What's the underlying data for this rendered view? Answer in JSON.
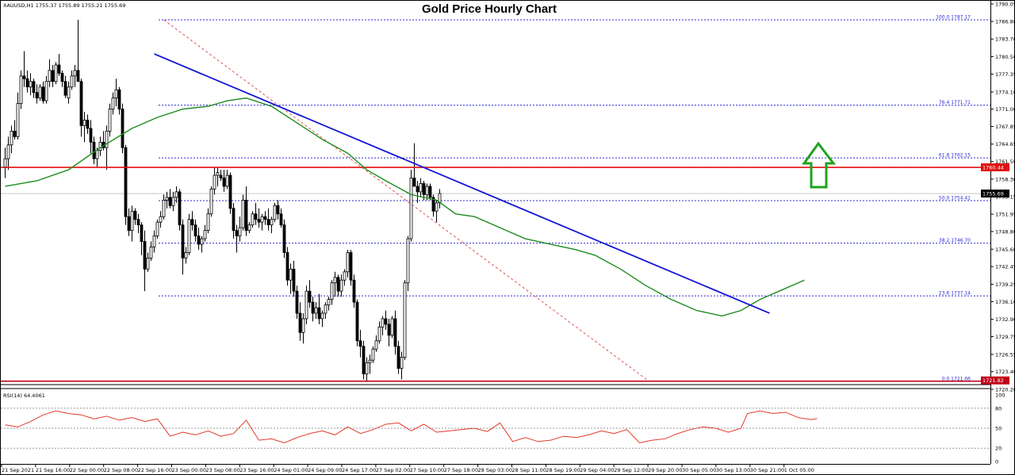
{
  "header": {
    "symbol_info": "XAUUSD,H1  1755.37 1755.89 1755.21 1755.69",
    "title": "Gold Price Hourly Chart"
  },
  "rsi_panel": {
    "label": "RSI(14) 64.4061",
    "levels": [
      "100",
      "80",
      "50",
      "20",
      "0"
    ]
  },
  "colors": {
    "bull_candle": "#ffffff",
    "bear_candle": "#000000",
    "trendline": "#1414d6",
    "moving_average": "#1e8c1e",
    "resistance": "#e01010",
    "support": "#c00018",
    "fib_lines": "#2b2bd6",
    "rsi_line": "#e03a2a",
    "arrow": "#1fa31f"
  },
  "chart_data": {
    "type": "candlestick",
    "title": "Gold Price Hourly Chart",
    "timeframe": "H1",
    "x_labels": [
      "21 Sep 2021",
      "21 Sep 16:00",
      "22 Sep 00:00",
      "22 Sep 08:00",
      "22 Sep 16:00",
      "23 Sep 00:00",
      "23 Sep 08:00",
      "23 Sep 16:00",
      "24 Sep 01:00",
      "24 Sep 09:00",
      "24 Sep 17:00",
      "27 Sep 02:00",
      "27 Sep 10:00",
      "27 Sep 18:00",
      "28 Sep 03:00",
      "28 Sep 11:00",
      "28 Sep 19:00",
      "29 Sep 04:00",
      "29 Sep 12:00",
      "29 Sep 20:00",
      "30 Sep 05:00",
      "30 Sep 13:00",
      "30 Sep 21:00",
      "1 Oct 05:00"
    ],
    "price_axis": [
      "1790.05",
      "1786.88",
      "1783.70",
      "1780.50",
      "1777.35",
      "1774.10",
      "1771.00",
      "1767.85",
      "1764.65",
      "1761.50",
      "1758.30",
      "1755.15",
      "1751.95",
      "1748.80",
      "1745.60",
      "1742.45",
      "1739.25",
      "1736.10",
      "1732.90",
      "1729.75",
      "1726.55",
      "1723.40",
      "1720.20"
    ],
    "ylim": [
      1720.2,
      1790.05
    ],
    "current_price": "1755.69",
    "resistance": {
      "value": 1760.44,
      "label": "1760.44"
    },
    "support": {
      "value": 1721.82,
      "label": "1721.82"
    },
    "fibonacci": [
      {
        "label": "100.0 1787.17",
        "value": 1787.17
      },
      {
        "label": "76.4 1771.71",
        "value": 1771.71
      },
      {
        "label": "61.8 1762.15",
        "value": 1762.15
      },
      {
        "label": "50.0 1754.41",
        "value": 1754.41
      },
      {
        "label": "38.2 1746.70",
        "value": 1746.7
      },
      {
        "label": "23.6 1737.14",
        "value": 1737.14
      },
      {
        "label": "0.0 1721.66",
        "value": 1721.66
      }
    ],
    "trendline": {
      "from": [
        47,
        1781.0
      ],
      "to": [
        241,
        1734.0
      ]
    },
    "fib_diagonal": {
      "from": [
        50,
        1787.17
      ],
      "to": [
        203,
        1721.66
      ]
    },
    "candles": [
      [
        1760.5,
        1764.0,
        1758.5,
        1762.0
      ],
      [
        1762.0,
        1766.0,
        1760.0,
        1764.5
      ],
      [
        1764.5,
        1768.0,
        1763.0,
        1767.0
      ],
      [
        1767.0,
        1769.0,
        1765.5,
        1766.0
      ],
      [
        1766.0,
        1774.0,
        1765.5,
        1772.0
      ],
      [
        1772.0,
        1778.0,
        1771.0,
        1777.0
      ],
      [
        1777.0,
        1781.5,
        1775.0,
        1776.5
      ],
      [
        1776.5,
        1778.0,
        1774.0,
        1775.0
      ],
      [
        1775.0,
        1777.5,
        1773.5,
        1776.0
      ],
      [
        1776.0,
        1776.5,
        1773.0,
        1774.0
      ],
      [
        1774.0,
        1775.5,
        1772.0,
        1773.0
      ],
      [
        1773.0,
        1775.5,
        1772.5,
        1775.0
      ],
      [
        1775.0,
        1776.0,
        1772.0,
        1772.5
      ],
      [
        1772.5,
        1777.0,
        1772.0,
        1776.0
      ],
      [
        1776.0,
        1780.0,
        1775.0,
        1778.0
      ],
      [
        1778.0,
        1779.0,
        1775.0,
        1776.0
      ],
      [
        1776.0,
        1779.5,
        1775.5,
        1779.0
      ],
      [
        1779.0,
        1781.0,
        1777.0,
        1777.5
      ],
      [
        1777.5,
        1778.0,
        1775.0,
        1776.0
      ],
      [
        1776.0,
        1777.0,
        1773.0,
        1773.5
      ],
      [
        1773.0,
        1776.0,
        1772.0,
        1775.0
      ],
      [
        1775.0,
        1778.0,
        1774.5,
        1777.0
      ],
      [
        1777.0,
        1779.0,
        1775.0,
        1778.0
      ],
      [
        1778.0,
        1787.2,
        1776.5,
        1776.0
      ],
      [
        1776.0,
        1776.5,
        1766.0,
        1768.0
      ],
      [
        1768.0,
        1770.5,
        1765.0,
        1769.0
      ],
      [
        1769.0,
        1770.0,
        1766.5,
        1767.5
      ],
      [
        1767.5,
        1769.0,
        1763.0,
        1765.0
      ],
      [
        1765.0,
        1766.0,
        1761.0,
        1762.0
      ],
      [
        1762.0,
        1764.0,
        1760.5,
        1763.5
      ],
      [
        1763.5,
        1766.0,
        1762.5,
        1765.0
      ],
      [
        1765.0,
        1767.0,
        1763.5,
        1764.0
      ],
      [
        1764.0,
        1768.0,
        1760.0,
        1767.0
      ],
      [
        1767.0,
        1772.0,
        1766.0,
        1771.0
      ],
      [
        1771.0,
        1774.0,
        1770.0,
        1773.0
      ],
      [
        1773.0,
        1776.5,
        1771.5,
        1774.5
      ],
      [
        1774.5,
        1775.0,
        1770.0,
        1771.0
      ],
      [
        1771.0,
        1772.0,
        1763.0,
        1764.0
      ],
      [
        1764.0,
        1764.5,
        1750.0,
        1751.5
      ],
      [
        1751.5,
        1753.0,
        1748.0,
        1749.0
      ],
      [
        1749.0,
        1753.5,
        1747.0,
        1752.5
      ],
      [
        1752.5,
        1753.0,
        1750.0,
        1751.0
      ],
      [
        1751.0,
        1752.0,
        1748.5,
        1750.0
      ],
      [
        1750.0,
        1750.5,
        1744.5,
        1747.0
      ],
      [
        1747.0,
        1749.0,
        1738.0,
        1742.0
      ],
      [
        1742.0,
        1745.0,
        1741.5,
        1744.0
      ],
      [
        1744.0,
        1747.0,
        1743.5,
        1746.0
      ],
      [
        1746.0,
        1749.0,
        1745.0,
        1748.0
      ],
      [
        1748.0,
        1751.0,
        1747.5,
        1750.5
      ],
      [
        1750.5,
        1752.5,
        1749.5,
        1751.5
      ],
      [
        1751.5,
        1755.5,
        1751.0,
        1754.5
      ],
      [
        1754.5,
        1756.0,
        1753.0,
        1755.0
      ],
      [
        1755.0,
        1756.5,
        1753.0,
        1753.5
      ],
      [
        1753.5,
        1756.0,
        1752.5,
        1755.0
      ],
      [
        1755.0,
        1757.0,
        1754.0,
        1756.0
      ],
      [
        1756.0,
        1756.5,
        1749.0,
        1750.0
      ],
      [
        1750.0,
        1751.0,
        1741.0,
        1744.0
      ],
      [
        1744.0,
        1746.0,
        1743.0,
        1745.0
      ],
      [
        1745.0,
        1752.0,
        1744.5,
        1751.0
      ],
      [
        1751.0,
        1752.5,
        1749.0,
        1750.0
      ],
      [
        1750.0,
        1751.0,
        1747.0,
        1748.0
      ],
      [
        1748.0,
        1749.5,
        1745.5,
        1746.5
      ],
      [
        1746.5,
        1748.0,
        1745.0,
        1747.5
      ],
      [
        1747.5,
        1750.0,
        1747.0,
        1749.0
      ],
      [
        1749.0,
        1753.0,
        1748.5,
        1752.0
      ],
      [
        1752.0,
        1757.0,
        1751.5,
        1756.5
      ],
      [
        1756.5,
        1760.5,
        1755.5,
        1759.0
      ],
      [
        1759.0,
        1760.5,
        1757.0,
        1759.5
      ],
      [
        1759.0,
        1760.0,
        1758.0,
        1758.5
      ],
      [
        1758.5,
        1760.0,
        1756.0,
        1757.0
      ],
      [
        1757.0,
        1760.0,
        1756.5,
        1759.0
      ],
      [
        1759.0,
        1759.5,
        1752.0,
        1753.0
      ],
      [
        1753.0,
        1754.0,
        1747.5,
        1749.0
      ],
      [
        1749.0,
        1750.0,
        1745.0,
        1748.0
      ],
      [
        1748.0,
        1751.5,
        1747.0,
        1749.5
      ],
      [
        1749.5,
        1755.5,
        1749.0,
        1754.5
      ],
      [
        1754.5,
        1757.0,
        1748.0,
        1749.0
      ],
      [
        1749.0,
        1750.5,
        1748.5,
        1750.0
      ],
      [
        1750.0,
        1752.5,
        1749.5,
        1752.0
      ],
      [
        1752.0,
        1754.0,
        1750.0,
        1751.0
      ],
      [
        1751.0,
        1753.0,
        1749.5,
        1750.5
      ],
      [
        1750.5,
        1752.0,
        1749.0,
        1751.5
      ],
      [
        1751.5,
        1752.5,
        1750.0,
        1751.0
      ],
      [
        1751.0,
        1753.0,
        1749.0,
        1750.0
      ],
      [
        1750.0,
        1751.5,
        1748.5,
        1751.0
      ],
      [
        1751.0,
        1754.0,
        1750.5,
        1753.5
      ],
      [
        1753.5,
        1754.5,
        1751.0,
        1752.0
      ],
      [
        1752.0,
        1753.0,
        1749.5,
        1750.0
      ],
      [
        1750.0,
        1751.0,
        1744.0,
        1745.0
      ],
      [
        1745.0,
        1746.0,
        1739.0,
        1740.0
      ],
      [
        1740.0,
        1743.0,
        1737.5,
        1742.0
      ],
      [
        1742.0,
        1743.5,
        1737.0,
        1738.0
      ],
      [
        1738.0,
        1739.0,
        1733.0,
        1734.0
      ],
      [
        1734.0,
        1736.0,
        1729.0,
        1730.5
      ],
      [
        1730.5,
        1734.0,
        1728.5,
        1733.0
      ],
      [
        1733.0,
        1739.0,
        1732.0,
        1738.0
      ],
      [
        1738.0,
        1740.0,
        1735.0,
        1736.0
      ],
      [
        1736.0,
        1737.0,
        1732.5,
        1734.0
      ],
      [
        1734.0,
        1736.0,
        1733.0,
        1735.0
      ],
      [
        1735.0,
        1737.5,
        1732.0,
        1733.0
      ],
      [
        1733.0,
        1734.5,
        1731.5,
        1734.0
      ],
      [
        1734.0,
        1736.0,
        1733.0,
        1735.5
      ],
      [
        1735.5,
        1737.0,
        1734.5,
        1736.5
      ],
      [
        1736.5,
        1740.0,
        1735.5,
        1739.5
      ],
      [
        1739.5,
        1741.5,
        1737.0,
        1740.5
      ],
      [
        1740.5,
        1741.0,
        1737.0,
        1738.0
      ],
      [
        1738.0,
        1741.0,
        1737.0,
        1740.0
      ],
      [
        1740.0,
        1742.0,
        1739.0,
        1741.5
      ],
      [
        1741.5,
        1745.5,
        1740.5,
        1745.0
      ],
      [
        1745.0,
        1745.5,
        1739.0,
        1740.0
      ],
      [
        1740.0,
        1741.0,
        1735.0,
        1736.0
      ],
      [
        1736.0,
        1736.5,
        1728.0,
        1729.0
      ],
      [
        1729.0,
        1731.0,
        1726.0,
        1728.0
      ],
      [
        1728.0,
        1729.0,
        1722.0,
        1723.0
      ],
      [
        1723.0,
        1726.0,
        1721.7,
        1725.0
      ],
      [
        1725.0,
        1726.5,
        1723.0,
        1725.5
      ],
      [
        1725.5,
        1728.0,
        1725.0,
        1727.5
      ],
      [
        1727.5,
        1730.0,
        1727.0,
        1729.0
      ],
      [
        1729.0,
        1732.5,
        1728.5,
        1731.5
      ],
      [
        1731.5,
        1733.5,
        1730.0,
        1733.0
      ],
      [
        1733.0,
        1734.5,
        1731.0,
        1732.0
      ],
      [
        1732.0,
        1733.0,
        1728.0,
        1730.0
      ],
      [
        1730.0,
        1733.5,
        1729.5,
        1733.0
      ],
      [
        1733.0,
        1734.5,
        1726.5,
        1728.0
      ],
      [
        1728.0,
        1729.0,
        1723.0,
        1724.0
      ],
      [
        1724.0,
        1727.0,
        1722.0,
        1726.0
      ],
      [
        1726.0,
        1740.0,
        1725.5,
        1739.5
      ],
      [
        1739.5,
        1748.0,
        1738.0,
        1747.5
      ],
      [
        1747.5,
        1760.0,
        1747.0,
        1758.5
      ],
      [
        1758.5,
        1764.8,
        1757.5,
        1757.0
      ],
      [
        1757.0,
        1758.0,
        1754.0,
        1756.0
      ],
      [
        1756.0,
        1758.5,
        1755.0,
        1757.5
      ],
      [
        1757.5,
        1758.0,
        1754.5,
        1755.5
      ],
      [
        1755.5,
        1757.5,
        1754.5,
        1757.0
      ],
      [
        1757.0,
        1757.5,
        1754.5,
        1755.0
      ],
      [
        1755.0,
        1755.5,
        1751.5,
        1752.5
      ],
      [
        1752.5,
        1754.5,
        1750.5,
        1754.0
      ],
      [
        1754.0,
        1756.5,
        1753.0,
        1755.69
      ]
    ],
    "moving_average": [
      [
        0,
        1757.0
      ],
      [
        10,
        1758.0
      ],
      [
        20,
        1760.0
      ],
      [
        30,
        1764.0
      ],
      [
        40,
        1767.5
      ],
      [
        48,
        1769.5
      ],
      [
        56,
        1771.0
      ],
      [
        64,
        1771.5
      ],
      [
        70,
        1772.5
      ],
      [
        76,
        1773.0
      ],
      [
        84,
        1771.5
      ],
      [
        92,
        1768.5
      ],
      [
        100,
        1765.5
      ],
      [
        108,
        1763.0
      ],
      [
        114,
        1760.0
      ],
      [
        120,
        1758.0
      ],
      [
        128,
        1755.5
      ],
      [
        136,
        1754.5
      ],
      [
        142,
        1752.0
      ],
      [
        148,
        1751.5
      ],
      [
        156,
        1749.5
      ],
      [
        164,
        1747.5
      ],
      [
        172,
        1746.5
      ],
      [
        180,
        1745.5
      ],
      [
        186,
        1744.5
      ],
      [
        194,
        1742.0
      ],
      [
        202,
        1739.0
      ],
      [
        210,
        1736.5
      ],
      [
        218,
        1734.5
      ],
      [
        226,
        1733.5
      ],
      [
        232,
        1734.5
      ],
      [
        238,
        1736.5
      ],
      [
        246,
        1738.5
      ],
      [
        252,
        1740.0
      ]
    ],
    "rsi": {
      "name": "RSI(14)",
      "last": 64.4061,
      "ylim": [
        0,
        100
      ],
      "levels": [
        20,
        50,
        80
      ],
      "points": [
        [
          0,
          55
        ],
        [
          4,
          52
        ],
        [
          8,
          60
        ],
        [
          12,
          70
        ],
        [
          16,
          76
        ],
        [
          20,
          72
        ],
        [
          24,
          70
        ],
        [
          28,
          64
        ],
        [
          32,
          68
        ],
        [
          36,
          62
        ],
        [
          40,
          66
        ],
        [
          44,
          60
        ],
        [
          48,
          64
        ],
        [
          52,
          38
        ],
        [
          56,
          44
        ],
        [
          60,
          40
        ],
        [
          64,
          46
        ],
        [
          68,
          38
        ],
        [
          72,
          42
        ],
        [
          76,
          62
        ],
        [
          80,
          32
        ],
        [
          84,
          34
        ],
        [
          88,
          28
        ],
        [
          92,
          36
        ],
        [
          96,
          42
        ],
        [
          100,
          46
        ],
        [
          104,
          40
        ],
        [
          108,
          52
        ],
        [
          112,
          42
        ],
        [
          116,
          48
        ],
        [
          120,
          56
        ],
        [
          124,
          58
        ],
        [
          128,
          46
        ],
        [
          132,
          56
        ],
        [
          136,
          44
        ],
        [
          140,
          46
        ],
        [
          144,
          48
        ],
        [
          148,
          50
        ],
        [
          152,
          45
        ],
        [
          156,
          58
        ],
        [
          160,
          30
        ],
        [
          164,
          36
        ],
        [
          168,
          30
        ],
        [
          172,
          32
        ],
        [
          176,
          38
        ],
        [
          180,
          36
        ],
        [
          184,
          40
        ],
        [
          188,
          46
        ],
        [
          192,
          42
        ],
        [
          196,
          48
        ],
        [
          200,
          28
        ],
        [
          204,
          32
        ],
        [
          208,
          34
        ],
        [
          212,
          42
        ],
        [
          216,
          48
        ],
        [
          220,
          52
        ],
        [
          224,
          50
        ],
        [
          228,
          44
        ],
        [
          232,
          50
        ],
        [
          234,
          72
        ],
        [
          238,
          76
        ],
        [
          242,
          72
        ],
        [
          246,
          74
        ],
        [
          250,
          66
        ],
        [
          254,
          63
        ],
        [
          256,
          64.4
        ]
      ]
    }
  }
}
